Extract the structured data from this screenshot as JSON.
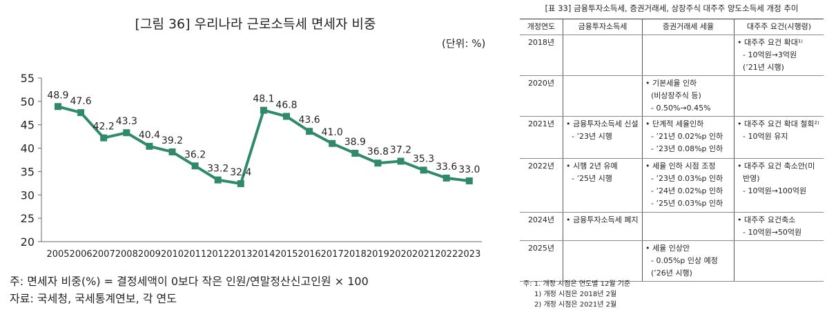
{
  "chart_data": {
    "type": "line",
    "title": "[그림 36] 우리나라 근로소득세 면세자 비중",
    "unit": "(단위: %)",
    "x": [
      "2005",
      "2006",
      "2007",
      "2008",
      "2009",
      "2010",
      "2011",
      "2012",
      "2013",
      "2014",
      "2015",
      "2016",
      "2017",
      "2018",
      "2019",
      "2020",
      "2021",
      "2022",
      "2023"
    ],
    "values": [
      48.9,
      47.6,
      42.2,
      43.3,
      40.4,
      39.2,
      36.2,
      33.2,
      32.4,
      48.1,
      46.8,
      43.6,
      41.0,
      38.9,
      36.8,
      37.2,
      35.3,
      33.6,
      33.0
    ],
    "labels": [
      "48.9",
      "47.6",
      "42.2",
      "43.3",
      "40.4",
      "39.2",
      "36.2",
      "33.2",
      "32.4",
      "48.1",
      "46.8",
      "43.6",
      "41.0",
      "38.9",
      "36.8",
      "37.2",
      "35.3",
      "33.6",
      "33.0"
    ],
    "ylim": [
      20,
      55
    ],
    "yticks": [
      "20",
      "25",
      "30",
      "35",
      "40",
      "45",
      "50",
      "55"
    ],
    "grid": false,
    "color": "#2f8a6c",
    "marker": "square"
  },
  "notes": [
    "주: 면세자 비중(%) = 결정세액이 0보다 작은 인원/연말정산신고인원 × 100",
    "자료: 국세청, 국세통계연보, 각 연도"
  ],
  "table": {
    "title": "[표 33] 금융투자소득세, 증권거래세, 상장주식 대주주 양도소득세 개정 추이",
    "headers": [
      "개정연도",
      "금융투자소득세",
      "증권거래세 세율",
      "대주주 요건(시행령)"
    ],
    "rows": [
      {
        "year": "2018년",
        "c1": [],
        "c2": [],
        "c3": [
          "• 대주주 요건 확대¹⁾",
          "- 10억원→3억원",
          "(’21년 시행)"
        ]
      },
      {
        "year": "2020년",
        "c1": [],
        "c2": [
          "• 기본세율 인하",
          "(비상장주식 등)",
          "- 0.50%→0.45%"
        ],
        "c3": []
      },
      {
        "year": "2021년",
        "c1": [
          "• 금융투자소득세 신설",
          "- ’23년 시행"
        ],
        "c2": [
          "• 단계적 세율인하",
          "- ’21년 0.02%p 인하",
          "- ’23년 0.08%p 인하"
        ],
        "c3": [
          "• 대주주 요건 확대 철회²⁾",
          "- 10억원 유지"
        ]
      },
      {
        "year": "2022년",
        "c1": [
          "• 시행 2년 유예",
          "- ’25년 시행"
        ],
        "c2": [
          "• 세율 인하 시점 조정",
          "- ’23년 0.03%p 인하",
          "- ’24년 0.02%p 인하",
          "- ’25년 0.03%p 인하"
        ],
        "c3": [
          "• 대주주 요건 축소안(미",
          "반영)",
          "- 10억원→100억원"
        ]
      },
      {
        "year": "2024년",
        "c1": [
          "• 금융투자소득세 폐지"
        ],
        "c2": [],
        "c3": [
          "• 대주주 요건축소",
          "- 10억원→50억원"
        ]
      },
      {
        "year": "2025년",
        "c1": [],
        "c2": [
          "• 세율 인상안",
          "- 0.05%p 인상 예정",
          "(’26년 시행)"
        ],
        "c3": []
      }
    ],
    "notes": [
      "주: 1. 개정 시점은 연도별 12월 기준",
      "1) 개정 시점은 2018년 2월",
      "2) 개정 시점은 2021년 2월"
    ]
  }
}
